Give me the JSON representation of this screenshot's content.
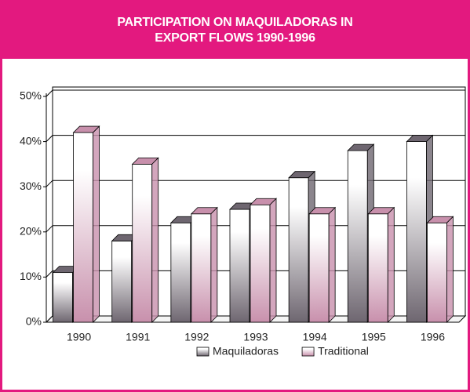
{
  "chart_data": {
    "type": "bar3d",
    "title": "PARTICIPATION ON MAQUILADORAS IN EXPORT FLOWS 1990-1996",
    "categories": [
      "1990",
      "1991",
      "1992",
      "1993",
      "1994",
      "1995",
      "1996"
    ],
    "series": [
      {
        "name": "Maquiladoras",
        "color": "#6e6670",
        "values": [
          11,
          18,
          22,
          25,
          32,
          38,
          40
        ]
      },
      {
        "name": "Traditional",
        "color": "#c890ac",
        "values": [
          42,
          35,
          24,
          26,
          24,
          24,
          22
        ]
      }
    ],
    "ylim": [
      0,
      50
    ],
    "yticks": [
      {
        "value": 0,
        "label": "0%"
      },
      {
        "value": 10,
        "label": "10%"
      },
      {
        "value": 20,
        "label": "20%"
      },
      {
        "value": 30,
        "label": "30%"
      },
      {
        "value": 40,
        "label": "40%"
      },
      {
        "value": 50,
        "label": "50%"
      }
    ],
    "grid": true,
    "legend": "bottom"
  }
}
